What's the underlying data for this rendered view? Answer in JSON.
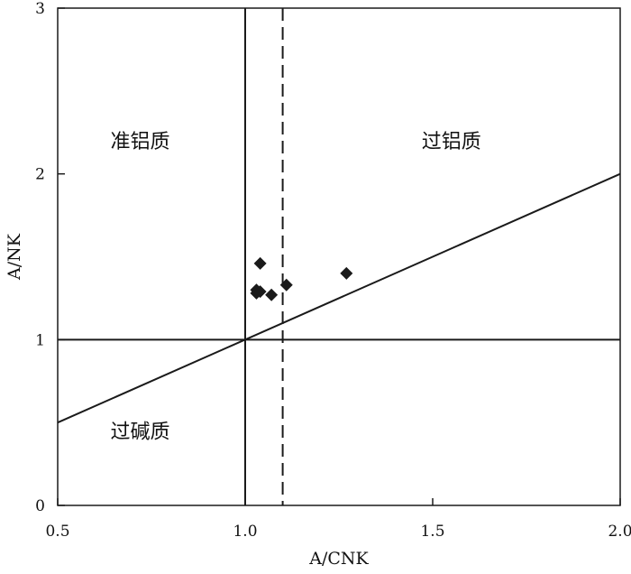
{
  "chart_data": {
    "type": "scatter",
    "xlabel": "A/CNK",
    "ylabel": "A/NK",
    "xlim": [
      0.5,
      2.0
    ],
    "ylim": [
      0,
      3
    ],
    "x_ticks": [
      "0.5",
      "1.0",
      "1.5",
      "2.0"
    ],
    "y_ticks": [
      "0",
      "1",
      "2",
      "3"
    ],
    "grid": false,
    "marker": "diamond",
    "series": [
      {
        "x": [
          1.03,
          1.03,
          1.04,
          1.04,
          1.07,
          1.11,
          1.27
        ],
        "y": [
          1.28,
          1.3,
          1.29,
          1.46,
          1.27,
          1.33,
          1.4
        ]
      }
    ],
    "reference_lines": [
      {
        "kind": "vertical",
        "x": 1.0,
        "style": "solid"
      },
      {
        "kind": "vertical",
        "x": 1.1,
        "style": "dashed"
      },
      {
        "kind": "horizontal",
        "y": 1.0,
        "style": "solid"
      },
      {
        "kind": "line",
        "points": [
          [
            0.5,
            0.5
          ],
          [
            2.0,
            2.0
          ]
        ],
        "style": "solid"
      }
    ],
    "regions": [
      {
        "label": "准铝质",
        "x": 0.72,
        "y": 2.2
      },
      {
        "label": "过铝质",
        "x": 1.55,
        "y": 2.2
      },
      {
        "label": "过碱质",
        "x": 0.72,
        "y": 0.45
      }
    ],
    "colors": {
      "axis": "#1a1a1a",
      "marker": "#1a1a1a",
      "background": "#ffffff"
    }
  }
}
